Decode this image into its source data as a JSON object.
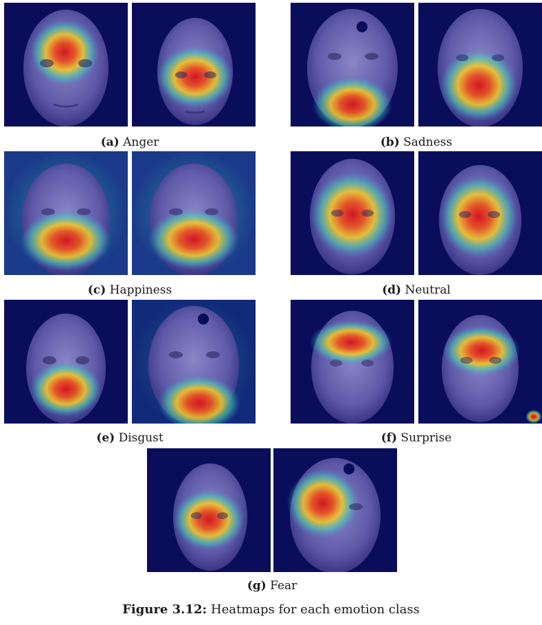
{
  "subfigures": [
    {
      "letter": "(a)",
      "label": "Anger"
    },
    {
      "letter": "(b)",
      "label": "Sadness"
    },
    {
      "letter": "(c)",
      "label": "Happiness"
    },
    {
      "letter": "(d)",
      "label": "Neutral"
    },
    {
      "letter": "(e)",
      "label": "Disgust"
    },
    {
      "letter": "(f)",
      "label": "Surprise"
    },
    {
      "letter": "(g)",
      "label": "Fear"
    }
  ],
  "figure_caption": {
    "label": "Figure 3.12:",
    "text": "Heatmaps for each emotion class"
  },
  "colors": {
    "background_dark": "#0b0f5c",
    "heat_hot": "#e8121a",
    "heat_warm": "#ffd400",
    "heat_cool": "#3fd0b0"
  }
}
